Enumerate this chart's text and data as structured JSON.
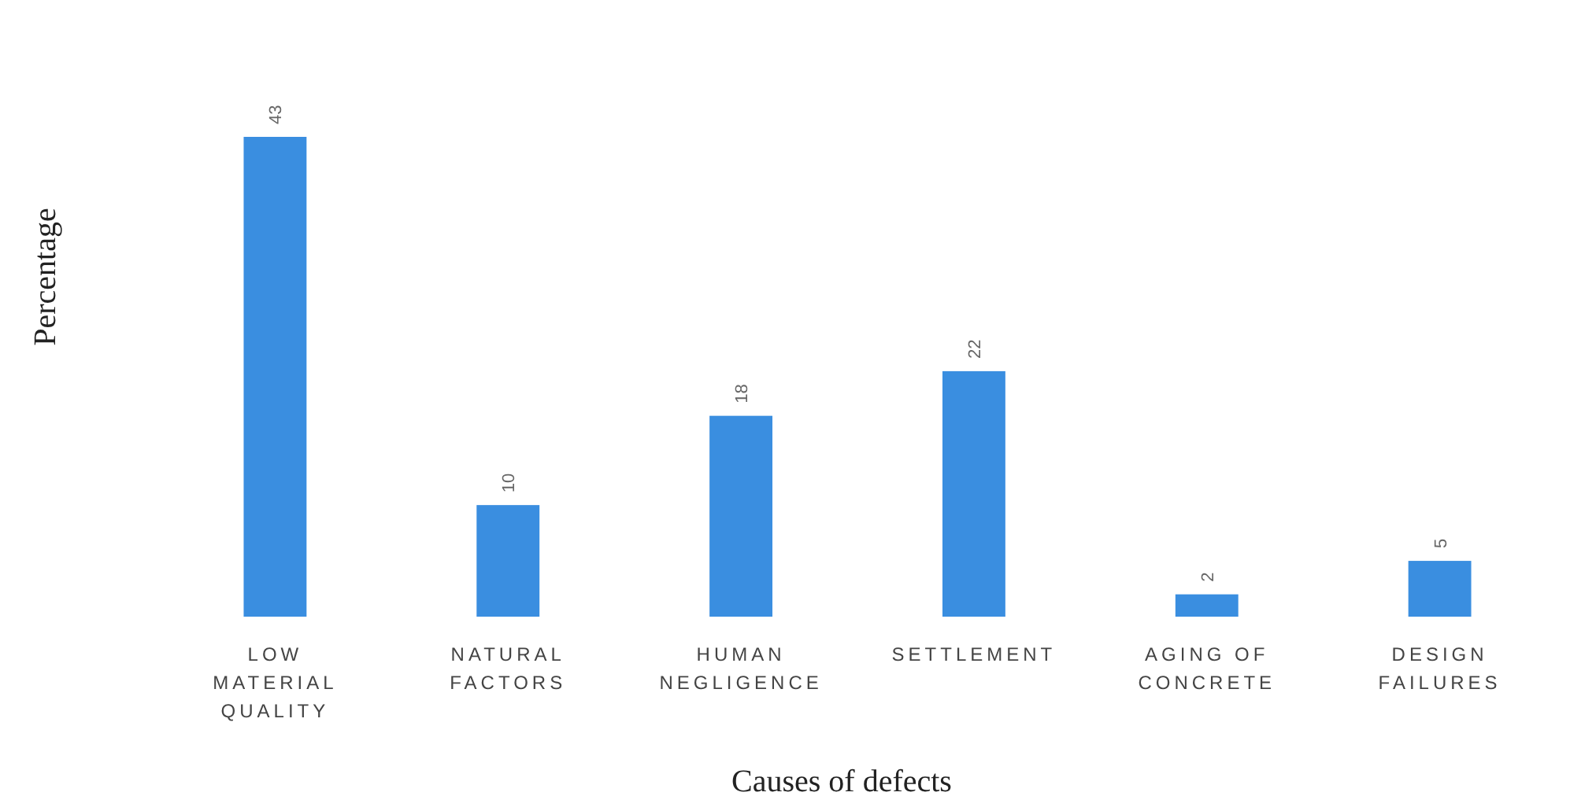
{
  "chart_data": {
    "type": "bar",
    "xlabel": "Causes of defects",
    "ylabel": "Percentage",
    "categories": [
      "LOW MATERIAL QUALITY",
      "NATURAL FACTORS",
      "HUMAN NEGLIGENCE",
      "SETTLEMENT",
      "AGING OF CONCRETE",
      "DESIGN FAILURES"
    ],
    "values": [
      43,
      10,
      18,
      22,
      2,
      5
    ],
    "color": "#3a8ee0",
    "data_labels": true
  }
}
